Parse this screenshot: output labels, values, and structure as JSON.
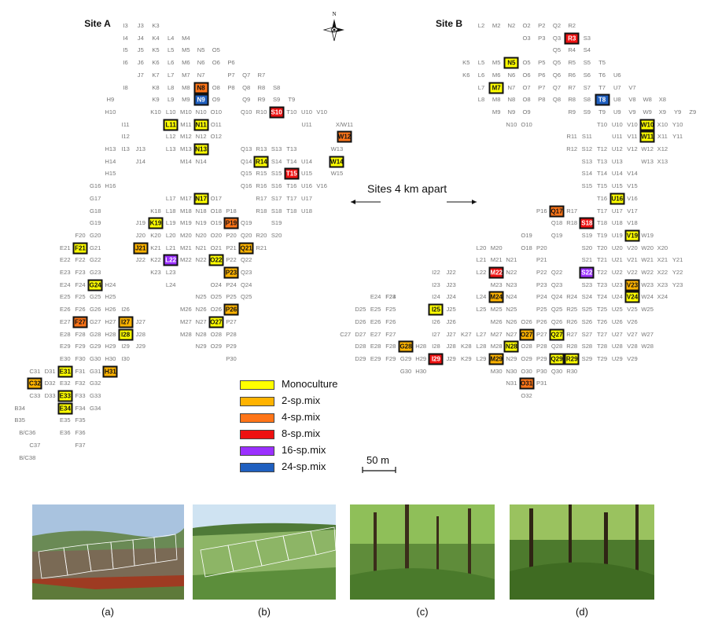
{
  "site_a_label": "Site A",
  "site_b_label": "Site B",
  "compass_label": "N",
  "distance_label": "Sites 4 km apart",
  "scale_label": "50 m",
  "legend": [
    {
      "key": "mono",
      "label": "Monoculture",
      "color": "#ffff00"
    },
    {
      "key": "mix2",
      "label": "2-sp.mix",
      "color": "#ffb300"
    },
    {
      "key": "mix4",
      "label": "4-sp.mix",
      "color": "#ff7518"
    },
    {
      "key": "mix8",
      "label": "8-sp.mix",
      "color": "#ee1111"
    },
    {
      "key": "mix16",
      "label": "16-sp.mix",
      "color": "#9b30ff"
    },
    {
      "key": "mix24",
      "label": "24-sp.mix",
      "color": "#1f5fbf"
    }
  ],
  "photo_captions": [
    "(a)",
    "(b)",
    "(c)",
    "(d)"
  ],
  "site_a": {
    "plot_rows": [
      "I3 J3 K3",
      "I4 J4 K4 L4 M4",
      "I5 J5 K5 L5 M5 N5 O5",
      "I6 J6 K6 L6 M6 N6 O6 P6",
      "J7 K7 L7 M7 N7 P7 Q7 R7",
      "I8 K8 L8 M8 N8 O8 P8 Q8 R8 S8",
      "H9 K9 L9 M9 N9 O9 Q9 R9 S9 T9",
      "H10 K10 L10 M10 N10 O10 Q10 R10 S10 T10 U10 V10",
      "I11 L11 M11 N11 O11 U11 X/W11",
      "I12 L12 M12 N12 O12 X/W12",
      "H13 I13 J13 L13 M13 N13 Q13 R13 S13 T13 W13",
      "H14 J14 M14 N14 Q14 R14 S14 T14 U14 W14",
      "H15 Q15 R15 S15 T15 U15 W15",
      "G16 H16 Q16 R16 S16 T16 U16 V16",
      "G17 L17 M17 N17 O17 R17 S17 T17 U17",
      "G18 K18 L18 M18 N18 O18 P18 R18 S18 T18 U18",
      "G19 J19 K19 L19 M19 N19 O19 P19 Q19 S19",
      "F20 G20 J20 K20 L20 M20 N20 O20 P20 Q20 R20 S20",
      "E21 F21 G21 J21 K21 L21 M21 N21 O21 P21 Q21 R21",
      "E22 F22 G22 J22 K22 L22 M22 N22 O22 P22 Q22",
      "E23 F23 G23 K23 L23 P23 Q23",
      "E24 F24 G24 H24 L24 O24 P24 Q24",
      "E25 F25 G25 H25 N25 O25 P25 Q25",
      "E26 F26 G26 H26 I26 M26 N26 O26 P26",
      "E27 F27 G27 H27 I27 J27 M27 N27 O27 P27",
      "E28 F28 G28 H28 I28 J28 M28 N28 O28 P28",
      "E29 F29 G29 H29 I29 J29 N29 O29 P29",
      "E30 F30 G30 H30 I30 P30",
      "C31 D31 E31 F31 G31 H31",
      "C32 D32 E32 F32 G32",
      "C33 D33 E33 F33 G33",
      "B34 E34 F34 G34",
      "B35 E35 F35",
      "B/C36 E36 F36",
      "C37 F37",
      "B/C38"
    ],
    "treatments": [
      {
        "id": "N8",
        "mix": "mix4"
      },
      {
        "id": "N9",
        "mix": "mix24"
      },
      {
        "id": "S10",
        "mix": "mix8"
      },
      {
        "id": "L11",
        "mix": "mono"
      },
      {
        "id": "N11",
        "mix": "mono"
      },
      {
        "id": "W12",
        "mix": "mix4"
      },
      {
        "id": "N13",
        "mix": "mono"
      },
      {
        "id": "R14",
        "mix": "mono"
      },
      {
        "id": "W14",
        "mix": "mono"
      },
      {
        "id": "T15",
        "mix": "mix8"
      },
      {
        "id": "N17",
        "mix": "mono"
      },
      {
        "id": "K19",
        "mix": "mono"
      },
      {
        "id": "P19",
        "mix": "mix4"
      },
      {
        "id": "F21",
        "mix": "mono"
      },
      {
        "id": "J21",
        "mix": "mix2"
      },
      {
        "id": "Q21",
        "mix": "mix2"
      },
      {
        "id": "L22",
        "mix": "mix16"
      },
      {
        "id": "O22",
        "mix": "mono"
      },
      {
        "id": "P23",
        "mix": "mix2"
      },
      {
        "id": "G24",
        "mix": "mono"
      },
      {
        "id": "P26",
        "mix": "mix2"
      },
      {
        "id": "F27",
        "mix": "mix4"
      },
      {
        "id": "I27",
        "mix": "mix2"
      },
      {
        "id": "O27",
        "mix": "mono"
      },
      {
        "id": "I28",
        "mix": "mono"
      },
      {
        "id": "E31",
        "mix": "mono"
      },
      {
        "id": "H31",
        "mix": "mix2"
      },
      {
        "id": "C32",
        "mix": "mix2"
      },
      {
        "id": "E33",
        "mix": "mono"
      },
      {
        "id": "E34",
        "mix": "mono"
      }
    ]
  },
  "site_b": {
    "plot_rows": [
      "L2 M2 N2 O2 P2 Q2 R2",
      "O3 P3 Q3 R3 S3",
      "Q5 R4 S4",
      "K5 L5 M5 N5 O5 P5 Q5 R5 S5 T5",
      "K6 L6 M6 N6 O6 P6 Q6 R6 S6 T6 U6",
      "L7 M7 N7 O7 P7 Q7 R7 S7 T7 U7 V7",
      "L8 M8 N8 O8 P8 Q8 R8 S8 T8 U8 V8 W8 X8",
      "M9 N9 O9 R9 S9 T9 U9 V9 W9 X9 Y9 Z9",
      "N10 O10 T10 U10 V10 W10 X10 Y10",
      "R11 S11 U11 V11 W11 X11 Y11",
      "R12 S12 T12 U12 V12 W12 X12",
      "S13 T13 U13 W13 X13",
      "S14 T14 U14 V14",
      "S15 T15 U15 V15",
      "T16 U16 V16",
      "P16 Q16 Q17 R17 T17 U17 V17",
      "Q18 R18 S18 T18 U18 V18",
      "O19 Q19 S19 T19 U19 V19 W19",
      "L20 M20 O18 P20 S20 T20 U20 V20 W20 X20",
      "L21 M21 N21 P21 S21 T21 U21 V21 W21 X21 Y21",
      "I22 J22 L22 M22 N22 P22 Q22 S22 T22 U22 V22 W22 X22 Y22",
      "I23 J23 M23 N23 P23 Q23 S23 T23 U23 V23 W23 X23 Y23",
      "F23 E24 F24 I24 J24 L24 M24 N24 P24 Q24 R24 S24 T24 U24 V24 W24 X24",
      "D25 E25 F25 I25 J25 L25 M25 N25 P25 Q25 R25 S25 T25 U25 V25 W25",
      "D26 E26 F26 I26 J26 M26 N26 O26 P26 Q26 R26 S26 T26 U26 V26",
      "C27 D27 E27 F27 I27 J27 K27 L27 M27 N27 O27 P27 Q27 R27 S27 T27 U27 V27 W27",
      "D28 E28 F28 G28 H28 I28 J28 K28 L28 M28 N28 O28 P28 Q28 R28 S28 T28 U28 V28 W28",
      "D29 E29 F29 G29 H29 I29 J29 K29 L29 M29 N29 O29 P29 Q29 R29 S29 T29 U29 V29",
      "G30 H30 M30 N30 O30 P30 Q30 R30",
      "N31 O31 P31",
      "O32"
    ],
    "treatments": [
      {
        "id": "R3",
        "mix": "mix8"
      },
      {
        "id": "N5",
        "mix": "mono"
      },
      {
        "id": "M7",
        "mix": "mono"
      },
      {
        "id": "T8",
        "mix": "mix24"
      },
      {
        "id": "W10",
        "mix": "mono"
      },
      {
        "id": "W11",
        "mix": "mono"
      },
      {
        "id": "U16",
        "mix": "mono"
      },
      {
        "id": "Q17",
        "mix": "mix4"
      },
      {
        "id": "S18",
        "mix": "mix8"
      },
      {
        "id": "V19",
        "mix": "mono"
      },
      {
        "id": "M22",
        "mix": "mix8"
      },
      {
        "id": "S22",
        "mix": "mix16"
      },
      {
        "id": "V23",
        "mix": "mix2"
      },
      {
        "id": "M24",
        "mix": "mix2"
      },
      {
        "id": "V24",
        "mix": "mono"
      },
      {
        "id": "I25",
        "mix": "mono"
      },
      {
        "id": "O27",
        "mix": "mix2"
      },
      {
        "id": "Q27",
        "mix": "mono"
      },
      {
        "id": "G28",
        "mix": "mix2"
      },
      {
        "id": "N28",
        "mix": "mono"
      },
      {
        "id": "I29",
        "mix": "mix8"
      },
      {
        "id": "M29",
        "mix": "mix2"
      },
      {
        "id": "Q29",
        "mix": "mono"
      },
      {
        "id": "R29",
        "mix": "mono"
      },
      {
        "id": "O31",
        "mix": "mix4"
      }
    ]
  }
}
